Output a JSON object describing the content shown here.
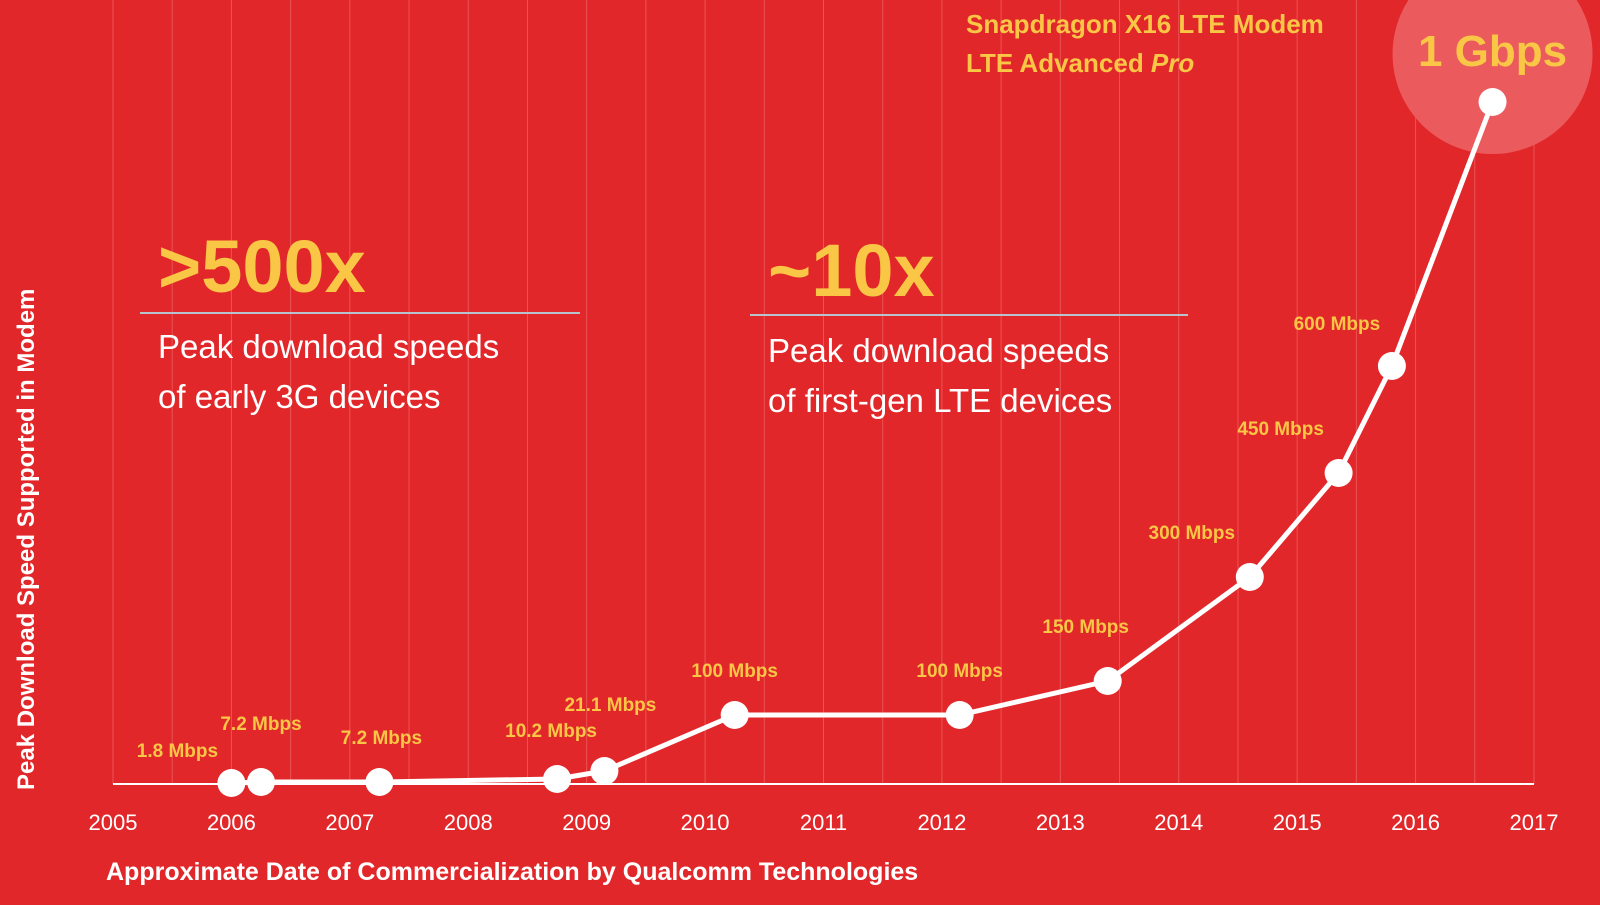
{
  "colors": {
    "background": "#e2272a",
    "accent": "#f9c646",
    "line": "#ffffff",
    "grid": "#f07a7a",
    "divider": "#b9c3ce",
    "highlight": "#eb5a5c"
  },
  "chart_data": {
    "type": "line",
    "title": "",
    "xlabel": "Approximate Date of Commercialization by Qualcomm Technologies",
    "ylabel": "Peak Download Speed Supported in Modem",
    "x_ticks": [
      "2005",
      "2006",
      "2007",
      "2008",
      "2009",
      "2010",
      "2011",
      "2012",
      "2013",
      "2014",
      "2015",
      "2016",
      "2017"
    ],
    "xlim": [
      2005,
      2017
    ],
    "ylim": [
      0,
      1000
    ],
    "grid": true,
    "series": [
      {
        "name": "Peak download speed",
        "points": [
          {
            "x": 2006.0,
            "y": 1.8,
            "label": "1.8 Mbps"
          },
          {
            "x": 2006.25,
            "y": 7.2,
            "label": "7.2 Mbps"
          },
          {
            "x": 2007.25,
            "y": 7.2,
            "label": "7.2 Mbps"
          },
          {
            "x": 2008.75,
            "y": 10.2,
            "label": "10.2 Mbps"
          },
          {
            "x": 2009.15,
            "y": 21.1,
            "label": "21.1 Mbps"
          },
          {
            "x": 2010.25,
            "y": 100,
            "label": "100 Mbps"
          },
          {
            "x": 2012.15,
            "y": 100,
            "label": "100 Mbps"
          },
          {
            "x": 2013.4,
            "y": 150,
            "label": "150 Mbps"
          },
          {
            "x": 2014.6,
            "y": 300,
            "label": "300 Mbps"
          },
          {
            "x": 2015.35,
            "y": 450,
            "label": "450 Mbps"
          },
          {
            "x": 2015.8,
            "y": 600,
            "label": "600 Mbps"
          },
          {
            "x": 2016.65,
            "y": 1000,
            "label": "1 Gbps"
          }
        ]
      }
    ],
    "annotations": [
      {
        "headline": ">500x",
        "lines": [
          "Peak download speeds",
          "of early 3G devices"
        ]
      },
      {
        "headline": "~10x",
        "lines": [
          "Peak download speeds",
          "of first-gen LTE devices"
        ]
      }
    ],
    "callout": {
      "line1": "Snapdragon X16 LTE Modem",
      "line2_main": "LTE Advanced ",
      "line2_italic": "Pro",
      "value": "1 Gbps"
    }
  }
}
